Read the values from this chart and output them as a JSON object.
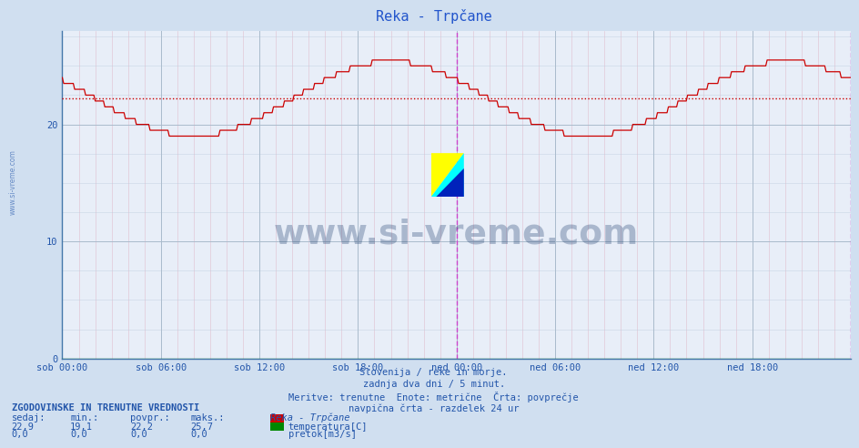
{
  "title": "Reka - Trpčane",
  "bg_color": "#d0dff0",
  "plot_bg_color": "#e8eef8",
  "grid_color_major": "#b8c8d8",
  "grid_color_minor": "#ccd8e8",
  "line_color": "#cc0000",
  "avg_line_color": "#cc0000",
  "avg_value": 22.2,
  "y_min": 0,
  "y_max": 28,
  "y_ticks": [
    0,
    10,
    20
  ],
  "x_tick_positions": [
    0,
    6,
    12,
    18,
    24,
    30,
    36,
    42
  ],
  "x_labels": [
    "sob 00:00",
    "sob 06:00",
    "sob 12:00",
    "sob 18:00",
    "ned 00:00",
    "ned 06:00",
    "ned 12:00",
    "ned 18:00"
  ],
  "num_points": 576,
  "subtitle_lines": [
    "Slovenija / reke in morje.",
    "zadnja dva dni / 5 minut.",
    "Meritve: trenutne  Enote: metrične  Črta: povprečje",
    "navpična črta - razdelek 24 ur"
  ],
  "watermark_text": "www.si-vreme.com",
  "watermark_color": "#1a3a6a",
  "watermark_alpha": 0.3,
  "vline_color": "#cc44cc",
  "arrow_color": "#cc0000",
  "bottom_header": "ZGODOVINSKE IN TRENUTNE VREDNOSTI",
  "bottom_cols": [
    "sedaj:",
    "min.:",
    "povpr.:",
    "maks.:"
  ],
  "bottom_row1_vals": [
    "22,9",
    "19,1",
    "22,2",
    "25,7"
  ],
  "bottom_row2_vals": [
    "0,0",
    "0,0",
    "0,0",
    "0,0"
  ],
  "legend_labels": [
    "temperatura[C]",
    "pretok[m3/s]"
  ],
  "legend_colors": [
    "#cc0000",
    "#008800"
  ],
  "legend_title": "Reka - Trpčane",
  "bottom_text_color": "#2255aa",
  "bottom_header_color": "#2255aa",
  "left_watermark": "www.si-vreme.com"
}
